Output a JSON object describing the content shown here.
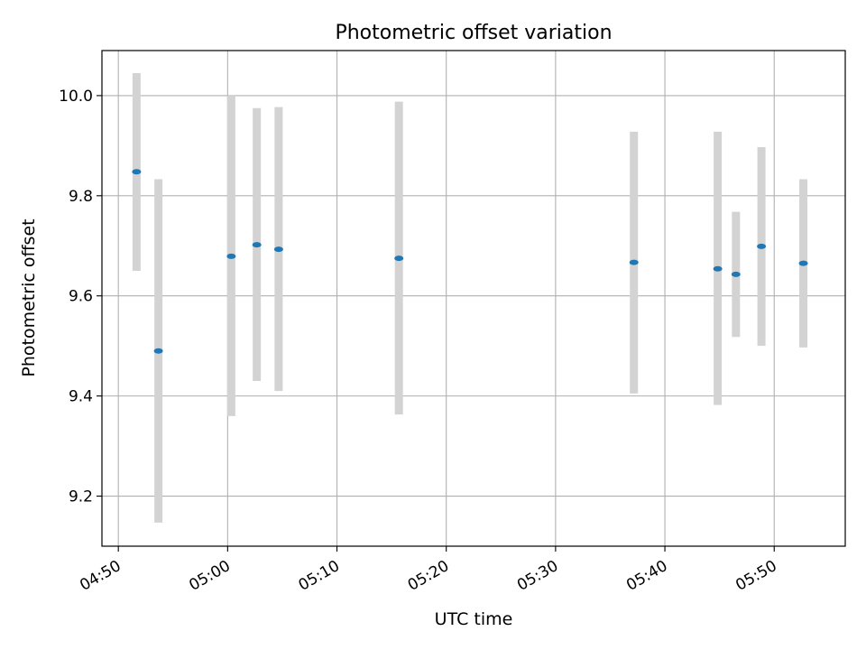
{
  "chart_data": {
    "type": "scatter",
    "title": "Photometric offset variation",
    "xlabel": "UTC time",
    "ylabel": "Photometric offset",
    "grid": true,
    "legend": "none",
    "xlim": [
      "04:48:30",
      "05:56:30"
    ],
    "ylim": [
      9.1,
      10.09
    ],
    "x_ticks": [
      "04:50",
      "05:00",
      "05:10",
      "05:20",
      "05:30",
      "05:40",
      "05:50"
    ],
    "y_ticks": [
      "9.2",
      "9.4",
      "9.6",
      "9.8",
      "10.0"
    ],
    "series": [
      {
        "points": [
          {
            "x": "04:51:40",
            "y": 9.848,
            "low": 9.65,
            "high": 10.045
          },
          {
            "x": "04:53:40",
            "y": 9.49,
            "low": 9.147,
            "high": 9.833
          },
          {
            "x": "05:00:20",
            "y": 9.679,
            "low": 9.36,
            "high": 10.0
          },
          {
            "x": "05:02:40",
            "y": 9.702,
            "low": 9.43,
            "high": 9.975
          },
          {
            "x": "05:04:40",
            "y": 9.693,
            "low": 9.41,
            "high": 9.977
          },
          {
            "x": "05:15:40",
            "y": 9.675,
            "low": 9.363,
            "high": 9.988
          },
          {
            "x": "05:37:10",
            "y": 9.667,
            "low": 9.405,
            "high": 9.928
          },
          {
            "x": "05:44:50",
            "y": 9.654,
            "low": 9.382,
            "high": 9.928
          },
          {
            "x": "05:46:30",
            "y": 9.643,
            "low": 9.518,
            "high": 9.768
          },
          {
            "x": "05:48:50",
            "y": 9.699,
            "low": 9.5,
            "high": 9.897
          },
          {
            "x": "05:52:40",
            "y": 9.665,
            "low": 9.497,
            "high": 9.833
          }
        ]
      }
    ],
    "colors": {
      "point": "#1f77b4",
      "errorbar": "#d3d3d3",
      "grid": "#b0b0b0",
      "axes": "#000000"
    }
  }
}
